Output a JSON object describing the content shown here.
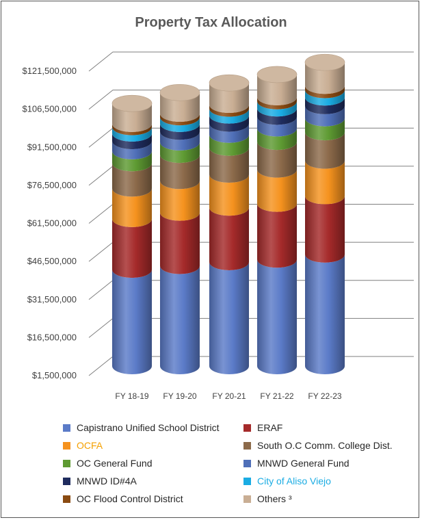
{
  "chart_data": {
    "type": "bar",
    "stacked": true,
    "style": "3d-cylinder",
    "title": "Property Tax Allocation",
    "xlabel": "",
    "ylabel": "",
    "ylim": [
      1500000,
      121500000
    ],
    "yticks": [
      1500000,
      16500000,
      31500000,
      46500000,
      61500000,
      76500000,
      91500000,
      106500000,
      121500000
    ],
    "ytick_labels": [
      "$1,500,000",
      "$16,500,000",
      "$31,500,000",
      "$46,500,000",
      "$61,500,000",
      "$76,500,000",
      "$91,500,000",
      "$106,500,000",
      "$121,500,000"
    ],
    "grid": true,
    "legend_position": "bottom",
    "categories": [
      "FY 18-19",
      "FY 19-20",
      "FY 20-21",
      "FY 21-22",
      "FY 22-23"
    ],
    "series": [
      {
        "name": "Capistrano Unified School District",
        "color": "#5B7BC8",
        "values": [
          38000000,
          39500000,
          41000000,
          42000000,
          44000000
        ]
      },
      {
        "name": "ERAF",
        "color": "#A52A2A",
        "values": [
          20000000,
          21000000,
          21500000,
          22000000,
          23000000
        ]
      },
      {
        "name": "OCFA",
        "color": "#F5921E",
        "values": [
          12000000,
          12500000,
          13000000,
          13500000,
          14000000
        ]
      },
      {
        "name": "South O.C Comm. College Dist.",
        "color": "#8C6A4A",
        "values": [
          10000000,
          10300000,
          10600000,
          10900000,
          11200000
        ]
      },
      {
        "name": "OC General Fund",
        "color": "#5E9A32",
        "values": [
          4700000,
          4900000,
          5100000,
          5300000,
          5500000
        ]
      },
      {
        "name": "MNWD General Fund",
        "color": "#4F6FB8",
        "values": [
          4000000,
          4200000,
          4400000,
          4600000,
          4800000
        ]
      },
      {
        "name": "MNWD ID#4A",
        "color": "#1F2C5E",
        "values": [
          3000000,
          3100000,
          3200000,
          3300000,
          3400000
        ]
      },
      {
        "name": "City of Aliso Viejo",
        "color": "#1AACE3",
        "values": [
          2500000,
          2600000,
          2700000,
          2800000,
          2900000
        ]
      },
      {
        "name": "OC Flood Control District",
        "color": "#8A4B12",
        "values": [
          1300000,
          1400000,
          1500000,
          1600000,
          1700000
        ]
      },
      {
        "name": "Others ³",
        "color": "#C9AE94",
        "values": [
          8000000,
          8300000,
          8600000,
          8900000,
          9200000
        ]
      }
    ]
  },
  "legend": {
    "items": [
      {
        "label": "Capistrano Unified School District",
        "color": "#5B7BC8",
        "text_color": "#262626"
      },
      {
        "label": "ERAF",
        "color": "#A52A2A",
        "text_color": "#262626"
      },
      {
        "label": "OCFA",
        "color": "#F5921E",
        "text_color": "#F5A000"
      },
      {
        "label": "South O.C Comm. College Dist.",
        "color": "#8C6A4A",
        "text_color": "#262626"
      },
      {
        "label": "OC General Fund",
        "color": "#5E9A32",
        "text_color": "#262626"
      },
      {
        "label": "MNWD General Fund",
        "color": "#4F6FB8",
        "text_color": "#262626"
      },
      {
        "label": "MNWD ID#4A",
        "color": "#1F2C5E",
        "text_color": "#262626"
      },
      {
        "label": "City of Aliso Viejo",
        "color": "#1AACE3",
        "text_color": "#1AACE3"
      },
      {
        "label": "OC Flood Control District",
        "color": "#8A4B12",
        "text_color": "#262626"
      },
      {
        "label": "Others ³",
        "color": "#C9AE94",
        "text_color": "#262626"
      }
    ]
  }
}
